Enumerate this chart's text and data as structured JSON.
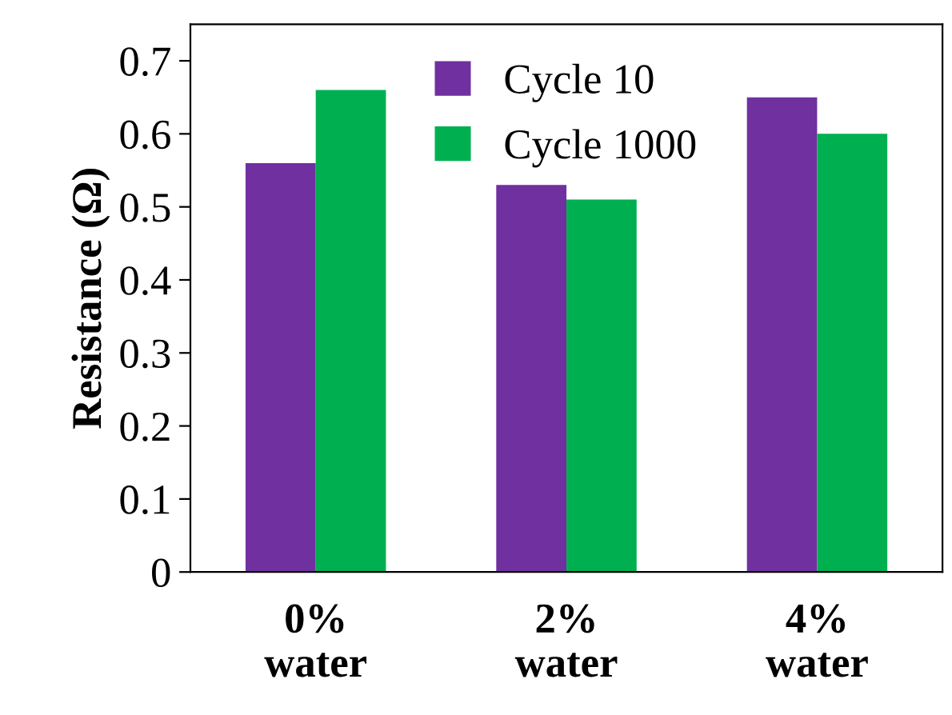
{
  "chart_data": {
    "type": "bar",
    "ylabel": "Resistance (Ω)",
    "categories": [
      "0%\nwater",
      "2%\nwater",
      "4%\nwater"
    ],
    "series": [
      {
        "name": "Cycle 10",
        "color": "#7030a0",
        "values": [
          0.56,
          0.53,
          0.65
        ]
      },
      {
        "name": "Cycle 1000",
        "color": "#00b050",
        "values": [
          0.66,
          0.51,
          0.6
        ]
      }
    ],
    "ylim": [
      0,
      0.75
    ],
    "yticks": [
      0,
      0.1,
      0.2,
      0.3,
      0.4,
      0.5,
      0.6,
      0.7
    ],
    "grid": false,
    "legend": "top"
  }
}
